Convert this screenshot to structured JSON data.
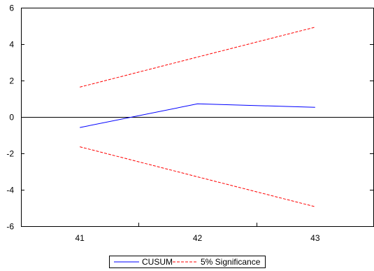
{
  "chart_data": {
    "type": "line",
    "title": "",
    "xlabel": "",
    "ylabel": "",
    "x": [
      41,
      42,
      43
    ],
    "x_tick_labels": [
      "41",
      "42",
      "43"
    ],
    "xlim": [
      40.5,
      43.5
    ],
    "ylim": [
      -6,
      6
    ],
    "y_ticks": [
      -6,
      -4,
      -2,
      0,
      2,
      4,
      6
    ],
    "y_tick_labels": [
      "-6",
      "-4",
      "-2",
      "0",
      "2",
      "4",
      "6"
    ],
    "zero_line": true,
    "grid": false,
    "legend_position": "bottom-center",
    "series": [
      {
        "name": "CUSUM",
        "values": [
          -0.58,
          0.72,
          0.53
        ],
        "color": "#0000ff",
        "dash": "solid"
      },
      {
        "name": "5% Significance",
        "values": [
          1.64,
          3.29,
          4.93
        ],
        "color": "#ff0000",
        "dash": "dashed"
      },
      {
        "name": "",
        "values": [
          -1.64,
          -3.29,
          -4.93
        ],
        "color": "#ff0000",
        "dash": "dashed"
      }
    ]
  }
}
